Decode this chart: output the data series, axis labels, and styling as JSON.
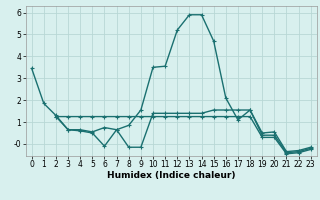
{
  "xlabel": "Humidex (Indice chaleur)",
  "line_color": "#1a7070",
  "bg_color": "#d8f0ee",
  "grid_color": "#b8d8d5",
  "ylim": [
    -0.55,
    6.3
  ],
  "xlim": [
    -0.5,
    23.5
  ],
  "yticks": [
    0,
    1,
    2,
    3,
    4,
    5,
    6
  ],
  "ytick_labels": [
    "-0",
    "1",
    "2",
    "3",
    "4",
    "5",
    "6"
  ],
  "xticks": [
    0,
    1,
    2,
    3,
    4,
    5,
    6,
    7,
    8,
    9,
    10,
    11,
    12,
    13,
    14,
    15,
    16,
    17,
    18,
    19,
    20,
    21,
    22,
    23
  ],
  "s1_x": [
    0,
    1,
    2,
    3,
    4,
    5,
    6,
    7,
    8,
    9,
    10,
    11,
    12,
    13,
    14,
    15,
    16,
    17,
    18,
    19,
    20,
    21,
    22,
    23
  ],
  "s1_y": [
    3.45,
    1.85,
    1.3,
    0.65,
    0.65,
    0.55,
    0.75,
    0.65,
    0.85,
    1.55,
    3.5,
    3.55,
    5.2,
    5.9,
    5.9,
    4.7,
    2.1,
    1.1,
    1.55,
    0.5,
    0.55,
    -0.35,
    -0.3,
    -0.15
  ],
  "s2_x": [
    2,
    3,
    4,
    5,
    6,
    7,
    8,
    9,
    10,
    11,
    12,
    13,
    14,
    15,
    16,
    17,
    18,
    19,
    20,
    21,
    22,
    23
  ],
  "s2_y": [
    1.25,
    0.65,
    0.6,
    0.5,
    -0.1,
    0.65,
    -0.15,
    -0.15,
    1.4,
    1.4,
    1.4,
    1.4,
    1.4,
    1.55,
    1.55,
    1.55,
    1.55,
    0.4,
    0.4,
    -0.4,
    -0.35,
    -0.2
  ],
  "s3_x": [
    2,
    3,
    4,
    5,
    6,
    7,
    8,
    9,
    10,
    11,
    12,
    13,
    14,
    15,
    16,
    17,
    18,
    19,
    20,
    21,
    22,
    23
  ],
  "s3_y": [
    1.25,
    1.25,
    1.25,
    1.25,
    1.25,
    1.25,
    1.25,
    1.25,
    1.25,
    1.25,
    1.25,
    1.25,
    1.25,
    1.25,
    1.25,
    1.25,
    1.25,
    0.3,
    0.3,
    -0.45,
    -0.4,
    -0.25
  ],
  "tick_fontsize": 5.5,
  "xlabel_fontsize": 6.5
}
